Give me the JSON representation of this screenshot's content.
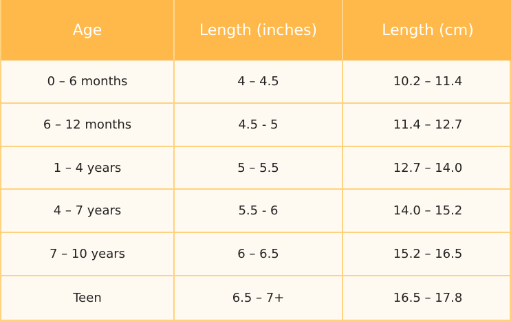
{
  "table": {
    "header": [
      "Age",
      "Length (inches)",
      "Length (cm)"
    ],
    "rows": [
      [
        "0 – 6 months",
        "4 – 4.5",
        "10.2 – 11.4"
      ],
      [
        "6 – 12 months",
        "4.5 - 5",
        "11.4 – 12.7"
      ],
      [
        "1 – 4 years",
        "5 – 5.5",
        "12.7 – 14.0"
      ],
      [
        "4 – 7 years",
        "5.5 - 6",
        "14.0 – 15.2"
      ],
      [
        "7 – 10 years",
        "6 – 6.5",
        "15.2 – 16.5"
      ],
      [
        "Teen",
        "6.5 – 7+",
        "16.5 – 17.8"
      ]
    ]
  }
}
